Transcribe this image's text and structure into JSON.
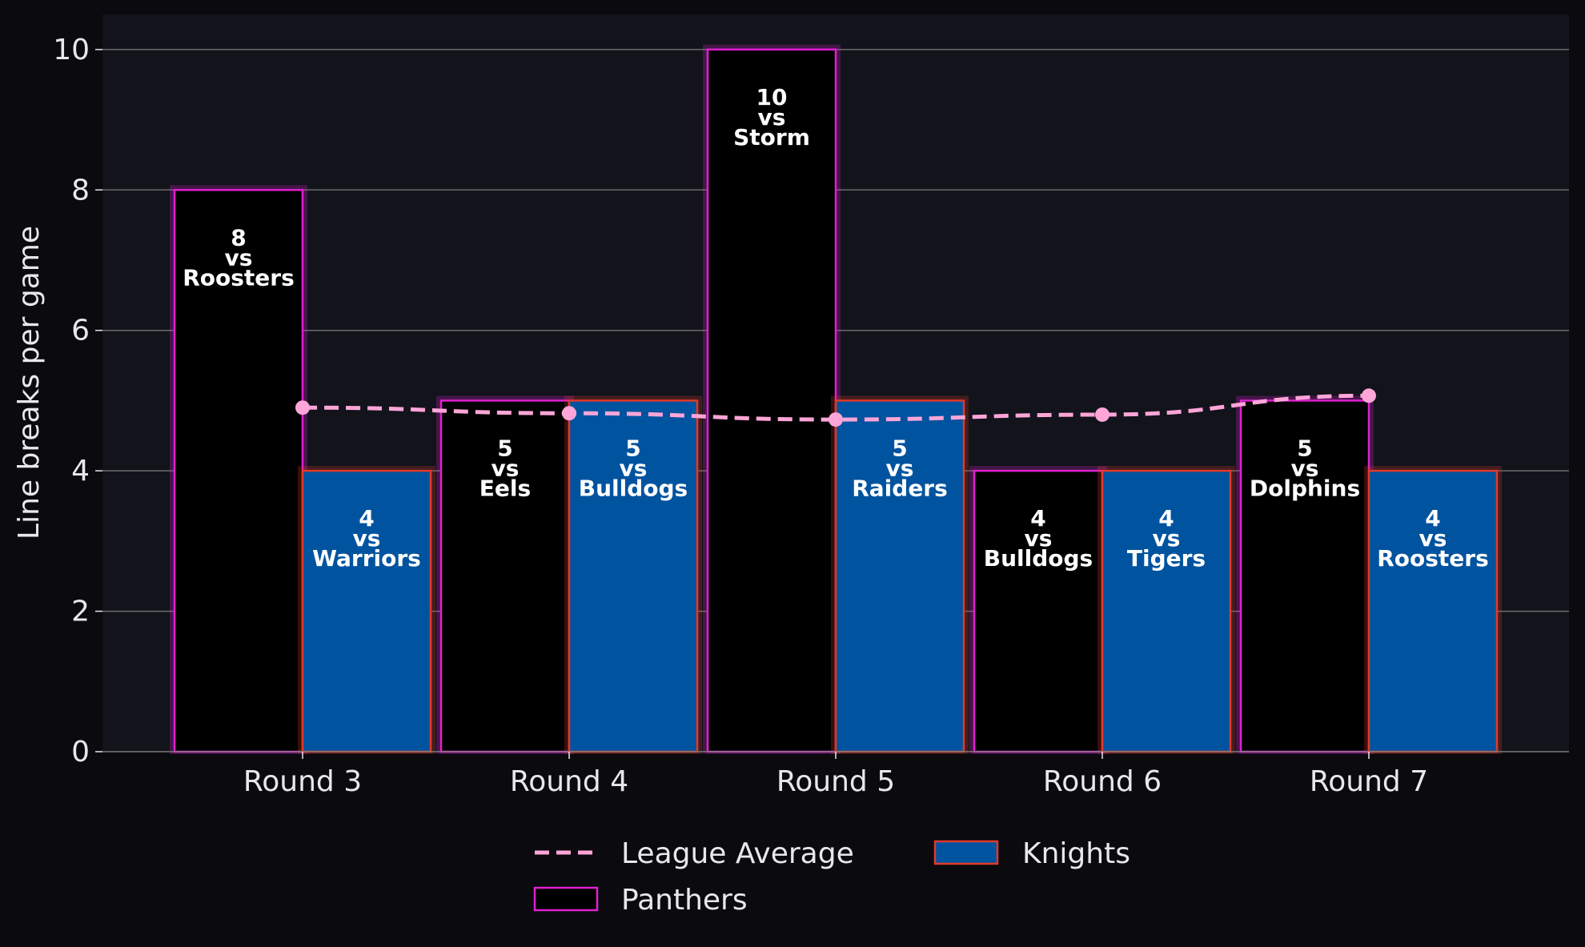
{
  "chart_data": {
    "type": "bar",
    "categories": [
      "Round 3",
      "Round 4",
      "Round 5",
      "Round 6",
      "Round 7"
    ],
    "ylabel": "Line breaks per game",
    "xlabel": "",
    "ylim": [
      0,
      10.5
    ],
    "yticks": [
      0,
      2,
      4,
      6,
      8,
      10
    ],
    "grid": true,
    "legend_position": "bottom-center",
    "series": [
      {
        "name": "Panthers",
        "values": [
          8,
          5,
          10,
          4,
          5
        ],
        "opponents": [
          "Roosters",
          "Eels",
          "Storm",
          "Bulldogs",
          "Dolphins"
        ],
        "fill": "#000000",
        "edge": "#e020d0"
      },
      {
        "name": "Knights",
        "values": [
          4,
          5,
          5,
          4,
          4
        ],
        "opponents": [
          "Warriors",
          "Bulldogs",
          "Raiders",
          "Tigers",
          "Roosters"
        ],
        "fill": "#00539f",
        "edge": "#e03a2a"
      }
    ],
    "lines": [
      {
        "name": "League Average",
        "values": [
          4.9,
          4.82,
          4.73,
          4.8,
          5.07
        ],
        "color": "#ffa5d8",
        "style": "dashed"
      }
    ],
    "bar_label_joiner": "vs"
  },
  "colors": {
    "background": "#0a0a0f",
    "plot_background": "#12131b",
    "grid": "#6b6b6b",
    "text": "#e8e8ec"
  }
}
